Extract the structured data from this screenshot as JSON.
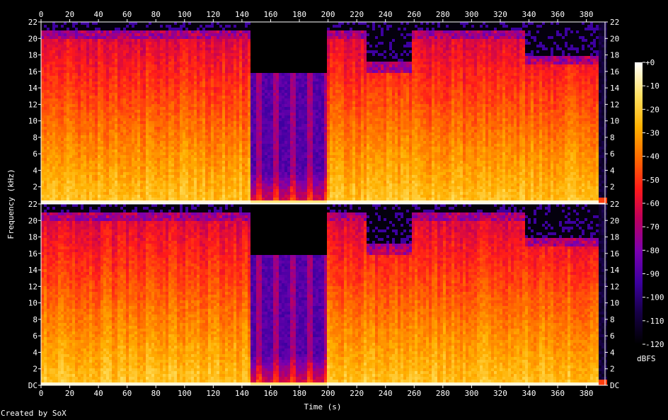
{
  "app": {
    "credit": "Created by SoX"
  },
  "chart_data": {
    "type": "heatmap",
    "kind": "spectrogram",
    "channels": 2,
    "xlabel": "Time (s)",
    "ylabel": "Frequency (kHz)",
    "xlim": [
      0,
      393
    ],
    "ylim": [
      0,
      22
    ],
    "x_ticks": [
      "0",
      "20",
      "40",
      "60",
      "80",
      "100",
      "120",
      "140",
      "160",
      "180",
      "200",
      "220",
      "240",
      "260",
      "280",
      "300",
      "320",
      "340",
      "360",
      "380"
    ],
    "y_ticks_top": [
      "2",
      "4",
      "6",
      "8",
      "10",
      "12",
      "14",
      "16",
      "18",
      "20",
      "22"
    ],
    "y_ticks_bottom": [
      "DC",
      "2",
      "4",
      "6",
      "8",
      "10",
      "12",
      "14",
      "16",
      "18",
      "20",
      "22"
    ],
    "colorbar": {
      "label": "dBFS",
      "ticks": [
        "+0",
        "-10",
        "-20",
        "-30",
        "-40",
        "-50",
        "-60",
        "-70",
        "-80",
        "-90",
        "-100",
        "-110",
        "-120"
      ],
      "range": [
        -120,
        0
      ],
      "colors": [
        "#000000",
        "#160045",
        "#3d00a0",
        "#7a00b0",
        "#c0005a",
        "#ff1a1a",
        "#ff6a00",
        "#ffb000",
        "#ffe060",
        "#ffffff"
      ]
    },
    "content_cutoff_khz": [
      {
        "start": 0,
        "end": 144,
        "cutoff": 20,
        "level": "loud"
      },
      {
        "start": 144,
        "end": 199,
        "cutoff": 16,
        "level": "quiet"
      },
      {
        "start": 199,
        "end": 226,
        "cutoff": 20,
        "level": "loud"
      },
      {
        "start": 226,
        "end": 257,
        "cutoff": 16,
        "level": "loud"
      },
      {
        "start": 257,
        "end": 336,
        "cutoff": 20,
        "level": "loud"
      },
      {
        "start": 336,
        "end": 388,
        "cutoff": 17,
        "level": "loud"
      },
      {
        "start": 388,
        "end": 393,
        "cutoff": 0,
        "level": "silent"
      }
    ]
  }
}
